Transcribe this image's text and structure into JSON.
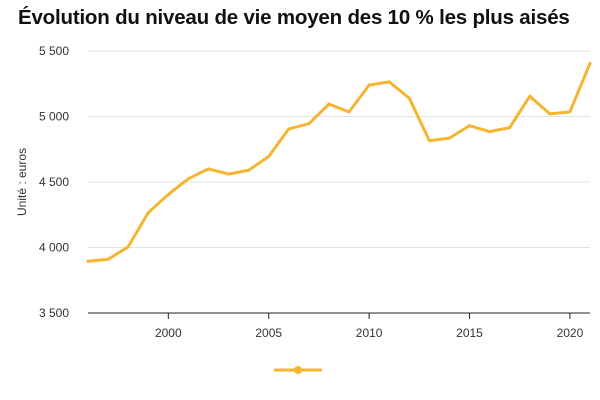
{
  "chart_data": {
    "type": "line",
    "title": "Évolution du niveau de vie moyen des 10 % les plus aisés",
    "ylabel": "Unité : euros",
    "xlabel": "",
    "xlim": [
      1996,
      2021
    ],
    "ylim": [
      3500,
      5500
    ],
    "x_ticks": [
      2000,
      2005,
      2010,
      2015,
      2020
    ],
    "y_ticks": [
      3500,
      4000,
      4500,
      5000,
      5500
    ],
    "y_tick_labels": [
      "3 500",
      "4 000",
      "4 500",
      "5 000",
      "5 500"
    ],
    "grid": "horizontal",
    "legend": "bottom-center",
    "series": [
      {
        "color": "#F6B531",
        "x": [
          1996,
          1997,
          1998,
          1999,
          2000,
          2001,
          2002,
          2003,
          2004,
          2005,
          2006,
          2007,
          2008,
          2009,
          2010,
          2011,
          2012,
          2013,
          2014,
          2015,
          2016,
          2017,
          2018,
          2019,
          2020,
          2021
        ],
        "values": [
          3895,
          3910,
          4005,
          4265,
          4405,
          4525,
          4600,
          4560,
          4590,
          4695,
          4905,
          4945,
          5095,
          5035,
          5240,
          5265,
          5140,
          4815,
          4835,
          4930,
          4885,
          4915,
          5155,
          5020,
          5035,
          5405
        ]
      }
    ]
  }
}
